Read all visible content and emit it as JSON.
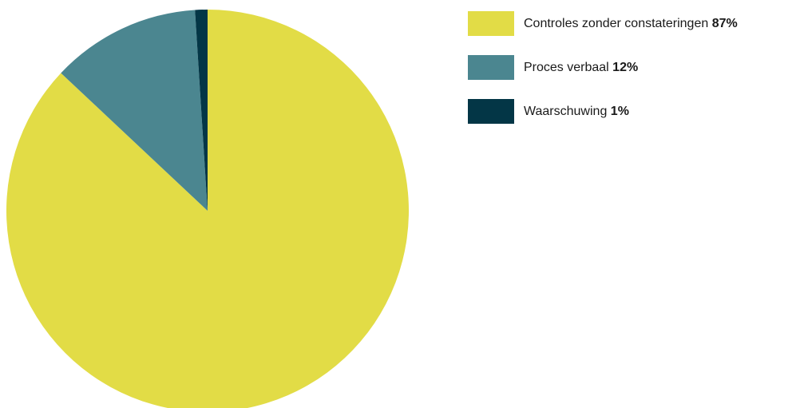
{
  "chart_data": {
    "type": "pie",
    "title": "",
    "legend_position": "top-right",
    "slices": [
      {
        "label": "Controles zonder constateringen",
        "value": 87,
        "value_label": "87%",
        "color": "#e2dc46"
      },
      {
        "label": "Proces verbaal",
        "value": 12,
        "value_label": "12%",
        "color": "#4b8690"
      },
      {
        "label": "Waarschuwing",
        "value": 1,
        "value_label": "1%",
        "color": "#033646"
      }
    ]
  }
}
